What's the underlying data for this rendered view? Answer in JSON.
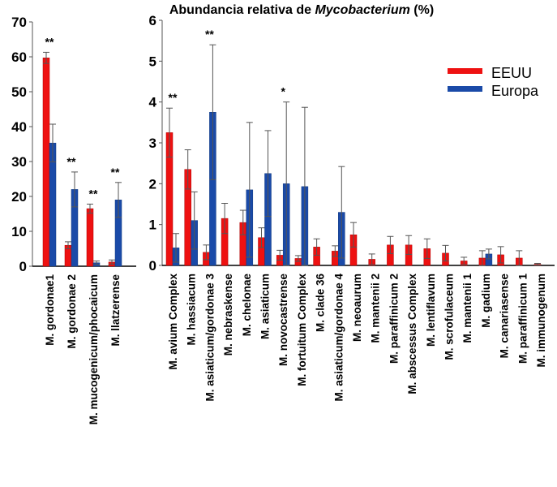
{
  "title": {
    "prefix": "Abundancia relativa de ",
    "italic": "Mycobacterium",
    "suffix": " (%)"
  },
  "legend": [
    {
      "label": "EEUU",
      "color": "#ee1111"
    },
    {
      "label": "Europa",
      "color": "#1a4aa8"
    }
  ],
  "chart_data": [
    {
      "type": "bar",
      "ylim": [
        0,
        70
      ],
      "yticks": [
        0,
        10,
        20,
        30,
        40,
        50,
        60,
        70
      ],
      "categories": [
        "M. gordonae1",
        "M. gordonae 2",
        "M. mucogenicum/phocaicum",
        "M. llatzerense"
      ],
      "series": [
        {
          "name": "EEUU",
          "values": [
            59.7,
            6.0,
            16.5,
            1.2
          ],
          "errors": [
            1.6,
            1.0,
            1.3,
            0.6
          ]
        },
        {
          "name": "Europa",
          "values": [
            35.3,
            22.0,
            1.0,
            19.0
          ],
          "errors": [
            5.4,
            5.0,
            0.5,
            5.0
          ]
        }
      ],
      "significance": [
        "**",
        "**",
        "**",
        "**"
      ]
    },
    {
      "type": "bar",
      "ylim": [
        0,
        6
      ],
      "yticks": [
        0,
        1,
        2,
        3,
        4,
        5,
        6
      ],
      "categories": [
        "M. avium Complex",
        "M. hassiacum",
        "M. asiaticum/gordonae 3",
        "M. nebraskense",
        "M. chelonae",
        "M. asiaticum",
        "M. novocastrense",
        "M. fortuitum Complex",
        "M. clade 36",
        "M. asiaticum/gordonae 4",
        "M. neoaurum",
        "M. mantenii 2",
        "M. paraffinicum 2",
        "M. abscessus Complex",
        "M. lentiflavum",
        "M. scrofulaceum",
        "M. mantenii 1",
        "M. gadium",
        "M. canariasense",
        "M. paraffinicum 1",
        "M. immunogenum"
      ],
      "series": [
        {
          "name": "EEUU",
          "values": [
            3.25,
            2.35,
            0.32,
            1.15,
            1.05,
            0.68,
            0.25,
            0.17,
            0.45,
            0.35,
            0.75,
            0.15,
            0.5,
            0.5,
            0.41,
            0.3,
            0.11,
            0.18,
            0.26,
            0.18,
            0.03
          ],
          "errors": [
            0.6,
            0.48,
            0.18,
            0.37,
            0.3,
            0.24,
            0.12,
            0.07,
            0.2,
            0.13,
            0.3,
            0.13,
            0.21,
            0.23,
            0.24,
            0.19,
            0.09,
            0.18,
            0.2,
            0.18,
            0.02
          ]
        },
        {
          "name": "Europa",
          "values": [
            0.43,
            1.1,
            3.75,
            0,
            1.85,
            2.25,
            2.0,
            1.93,
            0,
            1.3,
            0,
            0,
            0,
            0,
            0,
            0,
            0,
            0.28,
            0,
            0,
            0
          ],
          "errors": [
            0.35,
            0.7,
            1.65,
            0,
            1.65,
            1.05,
            2.0,
            1.94,
            0,
            1.12,
            0,
            0,
            0,
            0,
            0,
            0,
            0,
            0.12,
            0,
            0,
            0
          ]
        }
      ],
      "significance": [
        "**",
        "",
        "**",
        "",
        "",
        "",
        "*",
        "",
        "",
        "",
        "",
        "",
        "",
        "",
        "",
        "",
        "",
        "",
        "",
        "",
        ""
      ]
    }
  ]
}
